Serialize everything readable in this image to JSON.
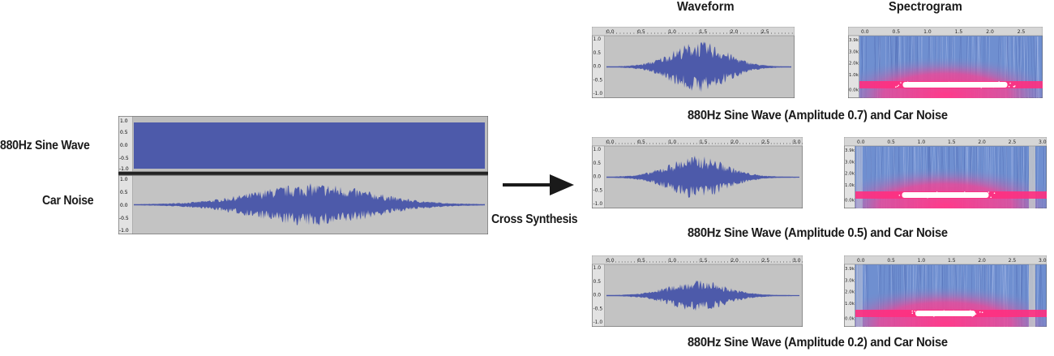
{
  "headers": {
    "waveform": "Waveform",
    "spectrogram": "Spectrogram"
  },
  "inputs": {
    "sine_label": "880Hz Sine Wave",
    "car_label": "Car Noise",
    "sine_ticks": [
      "1.0",
      "0.5",
      "0.0",
      "-0.5",
      "-1.0"
    ],
    "car_ticks": [
      "1.0",
      "0.5",
      "0.0",
      "-0.5",
      "-1.0"
    ]
  },
  "process_label": "Cross Synthesis",
  "waveform_ticks": [
    "1.0",
    "0.5",
    "0.0",
    "-0.5",
    "-1.0"
  ],
  "spectrogram_ticks": [
    "3.9k",
    "3.0k",
    "2.0k",
    "1.0k",
    "0.0k"
  ],
  "colors": {
    "waveform_fill": "#4d5aaa",
    "track_bg": "#c3c3c3",
    "spec_blue": "#6f8fd0",
    "spec_magenta": "#ff3a8a",
    "ruler_bg": "#d6d6d6"
  },
  "rows": [
    {
      "caption": "880Hz Sine Wave (Amplitude 0.7) and Car Noise",
      "amplitude": 0.7,
      "time_ticks": [
        "0.0",
        "0.5",
        "1.0",
        "1.5",
        "2.0",
        "2.5"
      ]
    },
    {
      "caption": "880Hz Sine Wave (Amplitude 0.5) and Car Noise",
      "amplitude": 0.5,
      "time_ticks": [
        "0.0",
        "0.5",
        "1.0",
        "1.5",
        "2.0",
        "2.5",
        "3.0"
      ]
    },
    {
      "caption": "880Hz Sine Wave (Amplitude 0.2) and Car Noise",
      "amplitude": 0.2,
      "time_ticks": [
        "0.0",
        "0.5",
        "1.0",
        "1.5",
        "2.0",
        "2.5",
        "3.0"
      ]
    }
  ]
}
